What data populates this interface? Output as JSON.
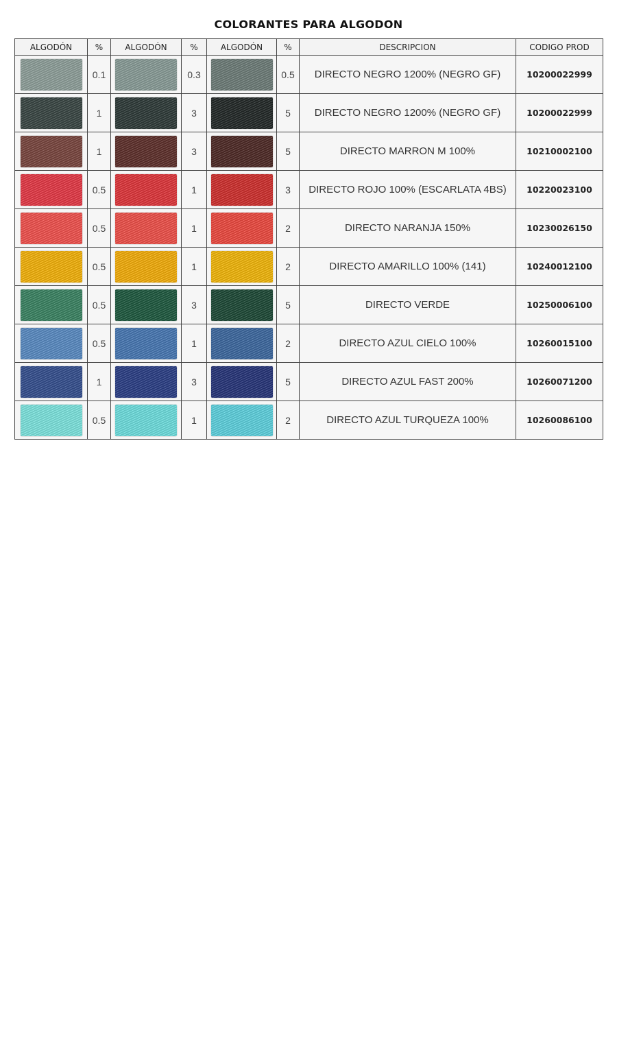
{
  "title": "COLORANTES PARA ALGODON",
  "headers": [
    "ALGODÓN",
    "%",
    "ALGODÓN",
    "%",
    "ALGODÓN",
    "%",
    "DESCRIPCION",
    "CODIGO PROD"
  ],
  "rows": [
    {
      "colors": [
        "#8fa09b",
        "#8a9d98",
        "#6e7d79"
      ],
      "pcts": [
        "0.1",
        "0.3",
        "0.5"
      ],
      "desc": "DIRECTO NEGRO 1200% (NEGRO GF)",
      "code": "10200022999"
    },
    {
      "colors": [
        "#3a4744",
        "#2f3b39",
        "#232928"
      ],
      "pcts": [
        "1",
        "3",
        "5"
      ],
      "desc": "DIRECTO NEGRO 1200% (NEGRO GF)",
      "code": "10200022999"
    },
    {
      "colors": [
        "#7a463f",
        "#5e302b",
        "#4e2a26"
      ],
      "pcts": [
        "1",
        "3",
        "5"
      ],
      "desc": "DIRECTO MARRON M 100%",
      "code": "10210002100"
    },
    {
      "colors": [
        "#e63946",
        "#e0363b",
        "#d0302e"
      ],
      "pcts": [
        "0.5",
        "1",
        "3"
      ],
      "desc": "DIRECTO ROJO 100% (ESCARLATA 4BS)",
      "code": "10220023100"
    },
    {
      "colors": [
        "#f2524e",
        "#f0514a",
        "#ee4a40"
      ],
      "pcts": [
        "0.5",
        "1",
        "2"
      ],
      "desc": "DIRECTO NARANJA 150%",
      "code": "10230026150"
    },
    {
      "colors": [
        "#f5b30a",
        "#f5ae0a",
        "#f3b70a"
      ],
      "pcts": [
        "0.5",
        "1",
        "2"
      ],
      "desc": "DIRECTO AMARILLO 100% (141)",
      "code": "10240012100"
    },
    {
      "colors": [
        "#3b8463",
        "#1f5a40",
        "#1e4a37"
      ],
      "pcts": [
        "0.5",
        "3",
        "5"
      ],
      "desc": "DIRECTO VERDE",
      "code": "10250006100"
    },
    {
      "colors": [
        "#5a8cc4",
        "#4878b4",
        "#3d69a0"
      ],
      "pcts": [
        "0.5",
        "1",
        "2"
      ],
      "desc": "DIRECTO AZUL CIELO 100%",
      "code": "10260015100"
    },
    {
      "colors": [
        "#35508f",
        "#2b3f86",
        "#27357a"
      ],
      "pcts": [
        "1",
        "3",
        "5"
      ],
      "desc": "DIRECTO AZUL FAST 200%",
      "code": "10260071200"
    },
    {
      "colors": [
        "#7ee6e0",
        "#6fe0e0",
        "#5fd3e0"
      ],
      "pcts": [
        "0.5",
        "1",
        "2"
      ],
      "desc": "DIRECTO AZUL TURQUEZA 100%",
      "code": "10260086100"
    }
  ]
}
